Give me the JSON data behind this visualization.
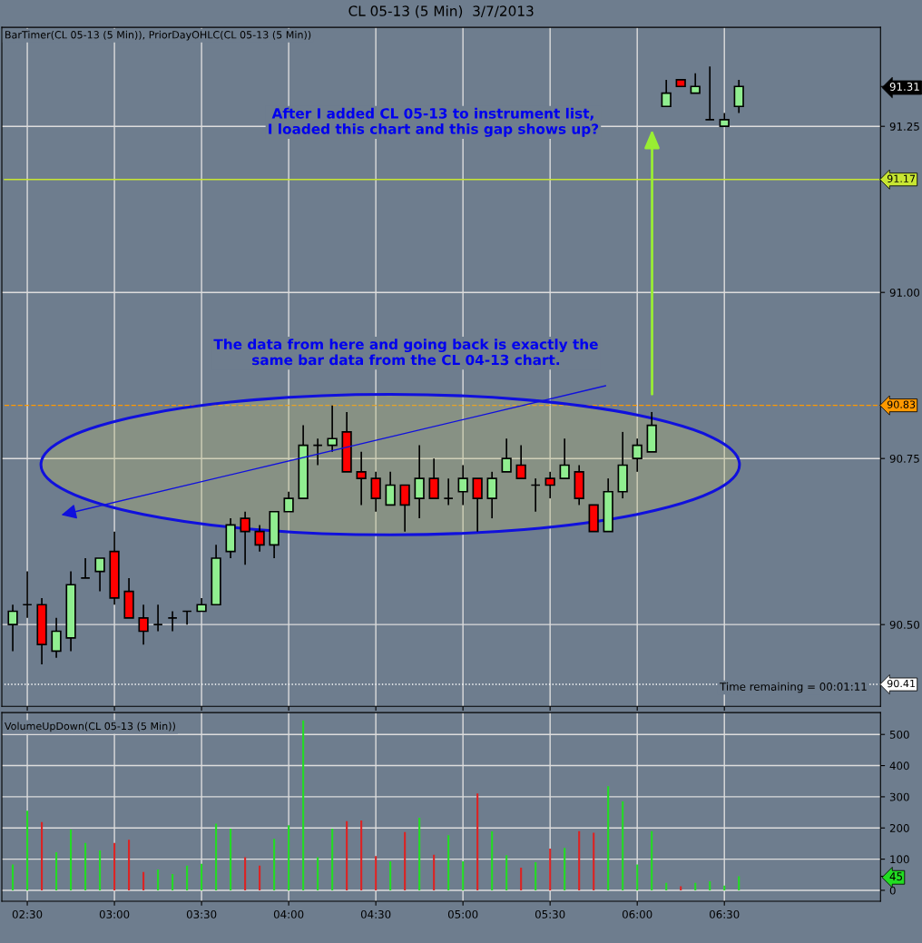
{
  "chart_data": [
    {
      "type": "candlestick",
      "title": "CL 05-13 (5 Min)  3/7/2013",
      "x": [
        2.41667,
        2.5,
        2.58333,
        2.66667,
        2.75,
        2.83333,
        2.91667,
        3,
        3.08333,
        3.16667,
        3.25,
        3.33333,
        3.41667,
        3.5,
        3.58333,
        3.66667,
        3.75,
        3.83333,
        3.91667,
        4,
        4.08333,
        4.16667,
        4.25,
        4.33333,
        4.41667,
        4.5,
        4.58333,
        4.66667,
        4.75,
        4.83333,
        4.91667,
        5,
        5.08333,
        5.16667,
        5.25,
        5.33333,
        5.41667,
        5.5,
        5.58333,
        5.66667,
        5.75,
        5.83333,
        5.91667,
        6,
        6.08333,
        6.16667,
        6.25,
        6.33333,
        6.41667,
        6.5,
        6.58333
      ],
      "ohlc": [
        [
          90.5,
          90.53,
          90.46,
          90.52
        ],
        [
          90.53,
          90.58,
          90.51,
          90.53
        ],
        [
          90.53,
          90.54,
          90.44,
          90.47
        ],
        [
          90.46,
          90.51,
          90.45,
          90.49
        ],
        [
          90.48,
          90.58,
          90.46,
          90.56
        ],
        [
          90.57,
          90.6,
          90.57,
          90.57
        ],
        [
          90.58,
          90.6,
          90.55,
          90.6
        ],
        [
          90.61,
          90.64,
          90.53,
          90.54
        ],
        [
          90.55,
          90.57,
          90.51,
          90.51
        ],
        [
          90.51,
          90.53,
          90.47,
          90.49
        ],
        [
          90.5,
          90.53,
          90.49,
          90.5
        ],
        [
          90.51,
          90.52,
          90.49,
          90.51
        ],
        [
          90.52,
          90.52,
          90.5,
          90.52
        ],
        [
          90.52,
          90.54,
          90.52,
          90.53
        ],
        [
          90.53,
          90.62,
          90.53,
          90.6
        ],
        [
          90.61,
          90.66,
          90.6,
          90.65
        ],
        [
          90.66,
          90.67,
          90.59,
          90.64
        ],
        [
          90.64,
          90.65,
          90.61,
          90.62
        ],
        [
          90.62,
          90.67,
          90.6,
          90.67
        ],
        [
          90.67,
          90.7,
          90.67,
          90.69
        ],
        [
          90.69,
          90.8,
          90.69,
          90.77
        ],
        [
          90.77,
          90.78,
          90.74,
          90.77
        ],
        [
          90.77,
          90.83,
          90.76,
          90.78
        ],
        [
          90.79,
          90.82,
          90.73,
          90.73
        ],
        [
          90.73,
          90.76,
          90.68,
          90.72
        ],
        [
          90.72,
          90.73,
          90.67,
          90.69
        ],
        [
          90.68,
          90.73,
          90.68,
          90.71
        ],
        [
          90.71,
          90.71,
          90.64,
          90.68
        ],
        [
          90.69,
          90.77,
          90.66,
          90.72
        ],
        [
          90.72,
          90.75,
          90.69,
          90.69
        ],
        [
          90.69,
          90.72,
          90.68,
          90.69
        ],
        [
          90.7,
          90.74,
          90.68,
          90.72
        ],
        [
          90.72,
          90.72,
          90.64,
          90.69
        ],
        [
          90.69,
          90.73,
          90.66,
          90.72
        ],
        [
          90.73,
          90.78,
          90.73,
          90.75
        ],
        [
          90.74,
          90.77,
          90.72,
          90.72
        ],
        [
          90.71,
          90.72,
          90.67,
          90.71
        ],
        [
          90.72,
          90.73,
          90.69,
          90.71
        ],
        [
          90.72,
          90.78,
          90.72,
          90.74
        ],
        [
          90.73,
          90.74,
          90.68,
          90.69
        ],
        [
          90.68,
          90.68,
          90.64,
          90.64
        ],
        [
          90.64,
          90.72,
          90.64,
          90.7
        ],
        [
          90.7,
          90.79,
          90.69,
          90.74
        ],
        [
          90.75,
          90.78,
          90.73,
          90.77
        ],
        [
          90.76,
          90.82,
          90.76,
          90.8
        ],
        [
          91.28,
          91.32,
          91.28,
          91.3
        ],
        [
          91.32,
          91.32,
          91.31,
          91.31
        ],
        [
          91.3,
          91.33,
          91.3,
          91.31
        ],
        [
          91.26,
          91.34,
          91.26,
          91.26
        ],
        [
          91.25,
          91.27,
          91.25,
          91.26
        ],
        [
          91.28,
          91.32,
          91.27,
          91.31
        ]
      ],
      "xlim": [
        2.354,
        7.396
      ],
      "ylim": [
        90.377,
        91.399
      ],
      "xticks": [
        {
          "value": 2.5,
          "label": null
        },
        {
          "value": 3,
          "label": null
        },
        {
          "value": 3.5,
          "label": null
        },
        {
          "value": 4,
          "label": null
        },
        {
          "value": 4.5,
          "label": null
        },
        {
          "value": 5,
          "label": null
        },
        {
          "value": 5.5,
          "label": null
        },
        {
          "value": 6,
          "label": null
        },
        {
          "value": 6.5,
          "label": null
        }
      ],
      "yticks": [
        {
          "value": 90.5,
          "label": "90.50"
        },
        {
          "value": 90.75,
          "label": "90.75"
        },
        {
          "value": 91,
          "label": "91.00"
        },
        {
          "value": 91.25,
          "label": "91.25"
        },
        {
          "value": 91.31,
          "label": "91.31"
        }
      ],
      "tick_labels": "y",
      "grid": true,
      "ref_lines": [
        {
          "axis": "y",
          "value": 91.17,
          "label": "91.17",
          "color": "#c8e632",
          "line_style": "solid"
        },
        {
          "axis": "y",
          "value": 90.83,
          "label": "90.83",
          "color": "#ff9900",
          "line_style": "dashed"
        },
        {
          "axis": "y",
          "value": 90.41,
          "label": "90.41",
          "color": "#ffffff",
          "line_style": "dotted"
        }
      ],
      "annotations": [
        "BarTimer(CL 05-13 (5 Min)), PriorDayOHLC(CL 05-13 (5 Min))",
        "After I added CL 05-13 to instrument list,\nI loaded this chart and this gap shows up?",
        "The data from here and going back is exactly the\nsame bar data from the CL 04-13 chart.",
        "Time remaining = 00:01:11"
      ]
    },
    {
      "type": "bar",
      "x": [
        2.41667,
        2.5,
        2.58333,
        2.66667,
        2.75,
        2.83333,
        2.91667,
        3,
        3.08333,
        3.16667,
        3.25,
        3.33333,
        3.41667,
        3.5,
        3.58333,
        3.66667,
        3.75,
        3.83333,
        3.91667,
        4,
        4.08333,
        4.16667,
        4.25,
        4.33333,
        4.41667,
        4.5,
        4.58333,
        4.66667,
        4.75,
        4.83333,
        4.91667,
        5,
        5.08333,
        5.16667,
        5.25,
        5.33333,
        5.41667,
        5.5,
        5.58333,
        5.66667,
        5.75,
        5.83333,
        5.91667,
        6,
        6.08333,
        6.16667,
        6.25,
        6.33333,
        6.41667,
        6.5,
        6.58333
      ],
      "values": [
        83,
        255,
        219,
        122,
        195,
        152,
        128,
        152,
        162,
        59,
        67,
        52,
        79,
        85,
        214,
        198,
        106,
        79,
        165,
        209,
        545,
        106,
        198,
        222,
        224,
        110,
        93,
        187,
        233,
        114,
        177,
        93,
        311,
        189,
        113,
        73,
        90,
        134,
        136,
        190,
        185,
        334,
        285,
        83,
        190,
        24,
        13,
        24,
        29,
        15,
        45
      ],
      "colors": [
        "#22dd22",
        "#22dd22",
        "#dd2222",
        "#22dd22",
        "#22dd22",
        "#22dd22",
        "#22dd22",
        "#dd2222",
        "#dd2222",
        "#dd2222",
        "#22dd22",
        "#22dd22",
        "#22dd22",
        "#22dd22",
        "#22dd22",
        "#22dd22",
        "#dd2222",
        "#dd2222",
        "#22dd22",
        "#22dd22",
        "#22dd22",
        "#22dd22",
        "#22dd22",
        "#dd2222",
        "#dd2222",
        "#dd2222",
        "#22dd22",
        "#dd2222",
        "#22dd22",
        "#dd2222",
        "#22dd22",
        "#22dd22",
        "#dd2222",
        "#22dd22",
        "#22dd22",
        "#dd2222",
        "#22dd22",
        "#dd2222",
        "#22dd22",
        "#dd2222",
        "#dd2222",
        "#22dd22",
        "#22dd22",
        "#22dd22",
        "#22dd22",
        "#22dd22",
        "#dd2222",
        "#22dd22",
        "#22dd22",
        "#22dd22",
        "#22dd22"
      ],
      "xlim": [
        2.354,
        7.396
      ],
      "ylim": [
        -35,
        570
      ],
      "xticks": [
        {
          "value": 2.5,
          "label": "02:30"
        },
        {
          "value": 3,
          "label": "03:00"
        },
        {
          "value": 3.5,
          "label": "03:30"
        },
        {
          "value": 4,
          "label": "04:00"
        },
        {
          "value": 4.5,
          "label": "04:30"
        },
        {
          "value": 5,
          "label": "05:00"
        },
        {
          "value": 5.5,
          "label": "05:30"
        },
        {
          "value": 6,
          "label": "06:00"
        },
        {
          "value": 6.5,
          "label": "06:30"
        }
      ],
      "yticks": [
        0,
        100,
        200,
        300,
        400,
        500,
        45
      ],
      "grid": true,
      "annotations": [
        "VolumeUpDown(CL 05-13 (5 Min))"
      ]
    }
  ]
}
